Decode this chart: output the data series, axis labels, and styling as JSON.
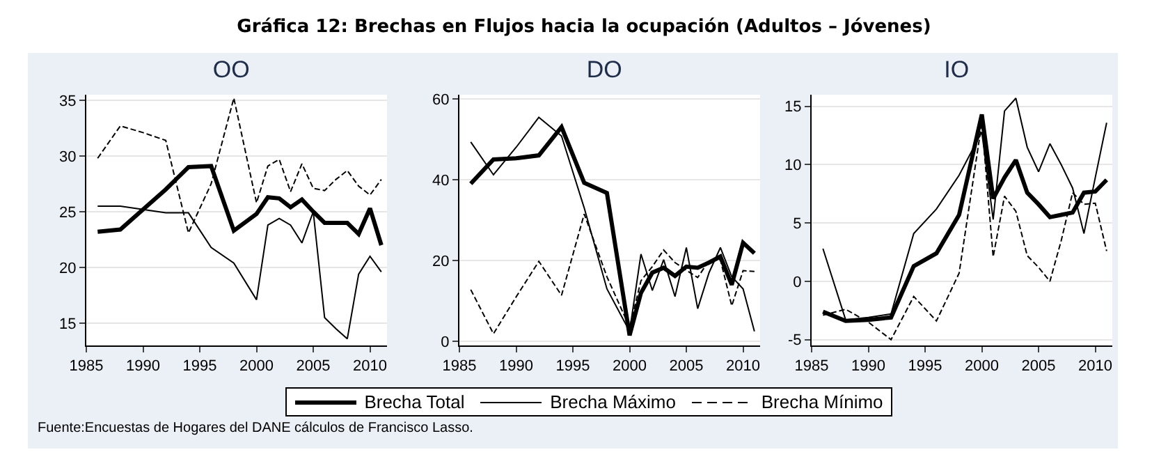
{
  "chart_data": [
    {
      "type": "other",
      "title": "Gráfica 12: Brechas en Flujos hacia la ocupación (Adultos – Jóvenes)",
      "annotations": [
        "Fuente:Encuestas de Hogares del DANE cálculos de Francisco Lasso."
      ]
    },
    {
      "type": "line",
      "title": "OO",
      "x": [
        1986,
        1988,
        1990,
        1992,
        1994,
        1996,
        1998,
        2000,
        2001,
        2002,
        2003,
        2004,
        2005,
        2006,
        2007,
        2008,
        2009,
        2010,
        2011
      ],
      "xlim": [
        1985,
        2011.5
      ],
      "xticks": [
        1985,
        1990,
        1995,
        2000,
        2005,
        2010
      ],
      "ylim": [
        13,
        35.5
      ],
      "yticks": [
        15,
        20,
        25,
        30,
        35
      ],
      "grid": "y",
      "legend": "bottom",
      "series": [
        {
          "name": "Brecha Total",
          "color": "#000000",
          "line_style": "solid",
          "values": [
            23.2,
            23.4,
            25.2,
            27,
            29,
            29.1,
            23.3,
            24.8,
            26.3,
            26.2,
            25.4,
            26.1,
            25.0,
            24.0,
            24.0,
            24.0,
            23.0,
            25.3,
            22.0
          ]
        },
        {
          "name": "Brecha Máximo",
          "color": "#000000",
          "line_style": "solid",
          "values": [
            25.5,
            25.5,
            25.2,
            24.9,
            24.9,
            21.8,
            20.4,
            17.1,
            23.8,
            24.4,
            23.8,
            22.2,
            25.0,
            15.5,
            14.5,
            13.6,
            19.4,
            21.0,
            19.6
          ]
        },
        {
          "name": "Brecha Mínimo",
          "color": "#000000",
          "line_style": "dashed",
          "values": [
            29.8,
            32.7,
            32.1,
            31.4,
            23.1,
            27.5,
            35.2,
            25.8,
            29.1,
            29.7,
            26.8,
            29.3,
            27.1,
            26.9,
            27.9,
            28.7,
            27.3,
            26.5,
            27.9
          ]
        }
      ]
    },
    {
      "type": "line",
      "title": "DO",
      "x": [
        1986,
        1988,
        1990,
        1992,
        1994,
        1996,
        1998,
        2000,
        2001,
        2002,
        2003,
        2004,
        2005,
        2006,
        2007,
        2008,
        2009,
        2010,
        2011
      ],
      "xlim": [
        1985,
        2011.5
      ],
      "xticks": [
        1985,
        1990,
        1995,
        2000,
        2005,
        2010
      ],
      "ylim": [
        -1,
        61
      ],
      "yticks": [
        0,
        20,
        40,
        60
      ],
      "grid": "y",
      "series": [
        {
          "color": "#000000",
          "line_style": "solid",
          "values": [
            39,
            45,
            45.3,
            46,
            53,
            39.2,
            36.7,
            1.5,
            12,
            17,
            18.2,
            16.2,
            18.5,
            18.2,
            19.5,
            21,
            14,
            24.4,
            21.8
          ]
        },
        {
          "color": "#000000",
          "line_style": "solid",
          "values": [
            49.3,
            41.2,
            48,
            55.4,
            50.8,
            33,
            13,
            2.5,
            21.6,
            12.6,
            20.2,
            11.1,
            23.2,
            8.1,
            17,
            23.2,
            16,
            13,
            2.5
          ]
        },
        {
          "color": "#000000",
          "line_style": "dashed",
          "values": [
            12.8,
            1.9,
            11,
            19.8,
            11.4,
            31.5,
            16,
            3.5,
            15,
            18.5,
            22.6,
            19.5,
            17.6,
            15.8,
            20,
            20.2,
            8.8,
            17.5,
            17.3
          ]
        }
      ]
    },
    {
      "type": "line",
      "title": "IO",
      "x": [
        1986,
        1988,
        1990,
        1992,
        1994,
        1996,
        1998,
        2000,
        2001,
        2002,
        2003,
        2004,
        2005,
        2006,
        2007,
        2008,
        2009,
        2010,
        2011
      ],
      "xlim": [
        1985,
        2011.5
      ],
      "xticks": [
        1985,
        1990,
        1995,
        2000,
        2005,
        2010
      ],
      "ylim": [
        -5.5,
        16
      ],
      "yticks": [
        -5,
        0,
        5,
        10,
        15
      ],
      "grid": "y",
      "series": [
        {
          "color": "#000000",
          "line_style": "solid",
          "values": [
            -2.6,
            -3.4,
            -3.3,
            -3.1,
            1.3,
            2.4,
            5.7,
            14.3,
            7.1,
            8.9,
            10.4,
            7.6,
            6.6,
            5.5,
            5.7,
            5.9,
            7.6,
            7.7,
            8.7
          ]
        },
        {
          "color": "#000000",
          "line_style": "solid",
          "values": [
            2.8,
            -3.3,
            -3.1,
            -2.8,
            4.1,
            6.2,
            9.1,
            12.8,
            5.3,
            14.6,
            15.7,
            11.5,
            9.4,
            11.8,
            10,
            8,
            4.1,
            8.9,
            13.6
          ]
        },
        {
          "color": "#000000",
          "line_style": "dashed",
          "values": [
            -2.9,
            -2.4,
            -3.5,
            -5,
            -1.3,
            -3.4,
            0.7,
            13.6,
            2.1,
            7.3,
            6,
            2.2,
            1.2,
            0,
            3.5,
            7.6,
            6.6,
            6.7,
            2.6
          ]
        }
      ]
    }
  ]
}
